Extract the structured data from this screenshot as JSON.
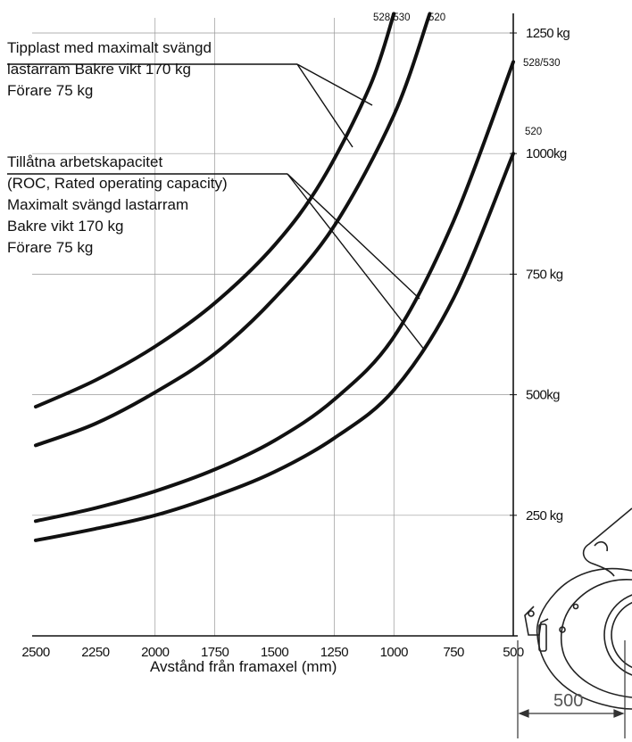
{
  "chart_data": {
    "type": "line",
    "xlabel": "Avstånd från framaxel (mm)",
    "x_ticks": [
      "2500",
      "2250",
      "2000",
      "1750",
      "1500",
      "1250",
      "1000",
      "750",
      "500"
    ],
    "y_ticks": [
      "250 kg",
      "500kg",
      "750 kg",
      "1000kg",
      "1250 kg"
    ],
    "xlim": [
      2500,
      500
    ],
    "ylim": [
      0,
      1250
    ],
    "grid": true,
    "series": [
      {
        "name": "528/530",
        "group": "tipplast",
        "values": [
          [
            2500,
            475
          ],
          [
            2250,
            530
          ],
          [
            2000,
            600
          ],
          [
            1750,
            690
          ],
          [
            1500,
            810
          ],
          [
            1300,
            945
          ],
          [
            1100,
            1140
          ],
          [
            1000,
            1290
          ]
        ]
      },
      {
        "name": "520",
        "group": "tipplast",
        "values": [
          [
            2500,
            395
          ],
          [
            2250,
            440
          ],
          [
            2000,
            505
          ],
          [
            1750,
            585
          ],
          [
            1500,
            700
          ],
          [
            1250,
            850
          ],
          [
            1000,
            1080
          ],
          [
            850,
            1290
          ]
        ]
      },
      {
        "name": "528/530",
        "group": "roc",
        "values": [
          [
            2500,
            238
          ],
          [
            2250,
            265
          ],
          [
            2000,
            300
          ],
          [
            1750,
            345
          ],
          [
            1500,
            405
          ],
          [
            1250,
            490
          ],
          [
            1000,
            620
          ],
          [
            750,
            860
          ],
          [
            500,
            1190
          ]
        ]
      },
      {
        "name": "520",
        "group": "roc",
        "values": [
          [
            2500,
            198
          ],
          [
            2250,
            222
          ],
          [
            2000,
            250
          ],
          [
            1750,
            290
          ],
          [
            1500,
            340
          ],
          [
            1250,
            410
          ],
          [
            1000,
            510
          ],
          [
            750,
            700
          ],
          [
            500,
            1000
          ]
        ]
      }
    ],
    "annotations": [
      {
        "id": "tipplast",
        "lines": [
          "Tipplast med maximalt svängd",
          "lastarram Bakre vikt 170 kg",
          "Förare 75 kg"
        ]
      },
      {
        "id": "roc",
        "lines": [
          "Tillåtna arbetskapacitet",
          "(ROC, Rated operating capacity)",
          "Maximalt svängd lastarram",
          "Bakre vikt 170 kg",
          "Förare 75 kg"
        ]
      }
    ],
    "model_labels": {
      "top_left": "528/530",
      "top_right": "520",
      "right_upper": "528/530",
      "right_lower": "520"
    }
  },
  "drawing": {
    "dimension_label": "500"
  },
  "colors": {
    "curve": "#111111",
    "grid": "#999999"
  }
}
